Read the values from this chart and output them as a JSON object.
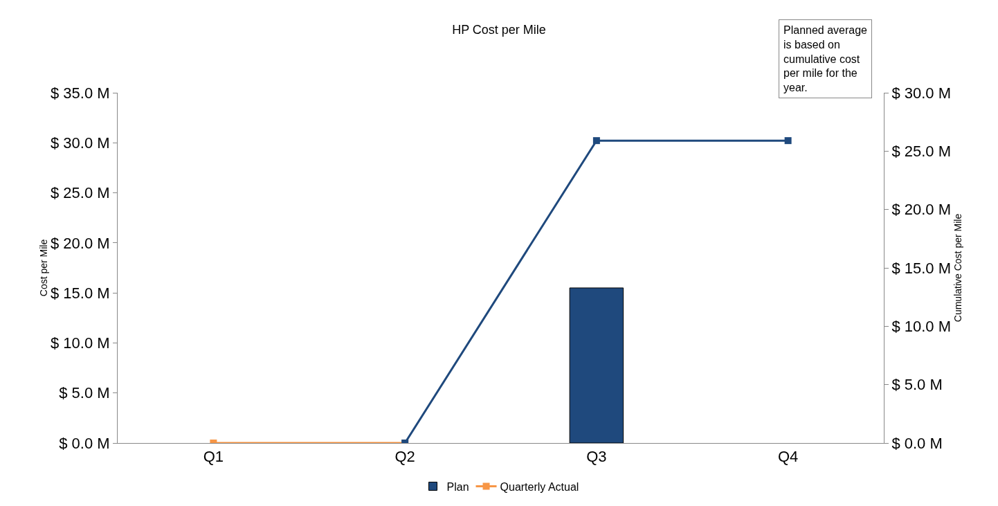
{
  "chart_data": {
    "type": "bar",
    "title": "HP Cost per Mile",
    "ylabel": "Cost per Mile",
    "y2label": "Cumulative Cost per Mile",
    "categories": [
      "Q1",
      "Q2",
      "Q3",
      "Q4"
    ],
    "series": [
      {
        "name": "Plan",
        "color": "#1f497d",
        "values": [
          null,
          null,
          15.5,
          null
        ]
      },
      {
        "type": "line",
        "axis": "y2",
        "color": "#1f497d",
        "values": [
          null,
          0,
          25.9,
          25.9
        ]
      },
      {
        "name": "Quarterly Actual",
        "type": "line",
        "color": "#f79646",
        "values": [
          0,
          0,
          null,
          null
        ]
      }
    ],
    "ylim": [
      0,
      35
    ],
    "yticks": [
      {
        "value": 0,
        "label": "$ 0.0 M"
      },
      {
        "value": 5,
        "label": "$ 5.0 M"
      },
      {
        "value": 10,
        "label": "$ 10.0 M"
      },
      {
        "value": 15,
        "label": "$ 15.0 M"
      },
      {
        "value": 20,
        "label": "$ 20.0 M"
      },
      {
        "value": 25,
        "label": "$ 25.0 M"
      },
      {
        "value": 30,
        "label": "$ 30.0 M"
      },
      {
        "value": 35,
        "label": "$ 35.0 M"
      }
    ],
    "y2lim": [
      0,
      30
    ],
    "y2ticks": [
      {
        "value": 0,
        "label": "$ 0.0 M"
      },
      {
        "value": 5,
        "label": "$ 5.0 M"
      },
      {
        "value": 10,
        "label": "$ 10.0 M"
      },
      {
        "value": 15,
        "label": "$ 15.0 M"
      },
      {
        "value": 20,
        "label": "$ 20.0 M"
      },
      {
        "value": 25,
        "label": "$ 25.0 M"
      },
      {
        "value": 30,
        "label": "$ 30.0 M"
      }
    ],
    "annotations": [
      "Planned average\nis based on\ncumulative cost\nper mile for the\nyear."
    ],
    "marker": "square",
    "line_style": "solid",
    "grid": false,
    "legend": "bottom"
  }
}
